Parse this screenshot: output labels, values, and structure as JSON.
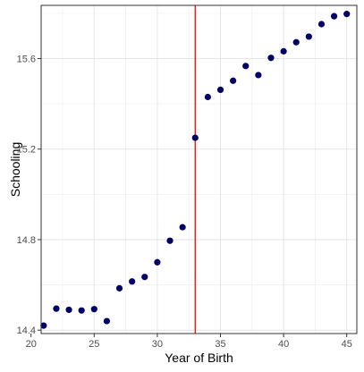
{
  "chart_data": {
    "type": "scatter",
    "title": "",
    "xlabel": "Year of Birth",
    "ylabel": "Schooling",
    "xlim": [
      20.8,
      45.8
    ],
    "ylim": [
      14.385,
      15.835
    ],
    "x_ticks": [
      20,
      25,
      30,
      35,
      40,
      45
    ],
    "x_tick_labels": [
      "20",
      "25",
      "30",
      "35",
      "40",
      "45"
    ],
    "y_ticks": [
      14.4,
      14.8,
      15.2,
      15.6
    ],
    "y_tick_labels": [
      "14.4",
      "14.8",
      "15.2",
      "15.6"
    ],
    "grid": true,
    "cutoff_line": {
      "x": 33,
      "color": "#ff0000"
    },
    "point_color": "#000066",
    "x": [
      21,
      22,
      23,
      24,
      25,
      26,
      27,
      28,
      29,
      30,
      31,
      32,
      33,
      34,
      35,
      36,
      37,
      38,
      39,
      40,
      41,
      42,
      43,
      44,
      45
    ],
    "y": [
      14.42,
      14.495,
      14.49,
      14.487,
      14.493,
      14.44,
      14.585,
      14.615,
      14.635,
      14.7,
      14.795,
      14.855,
      15.25,
      15.43,
      15.462,
      15.502,
      15.567,
      15.527,
      15.603,
      15.632,
      15.672,
      15.697,
      15.752,
      15.787,
      15.797
    ]
  }
}
